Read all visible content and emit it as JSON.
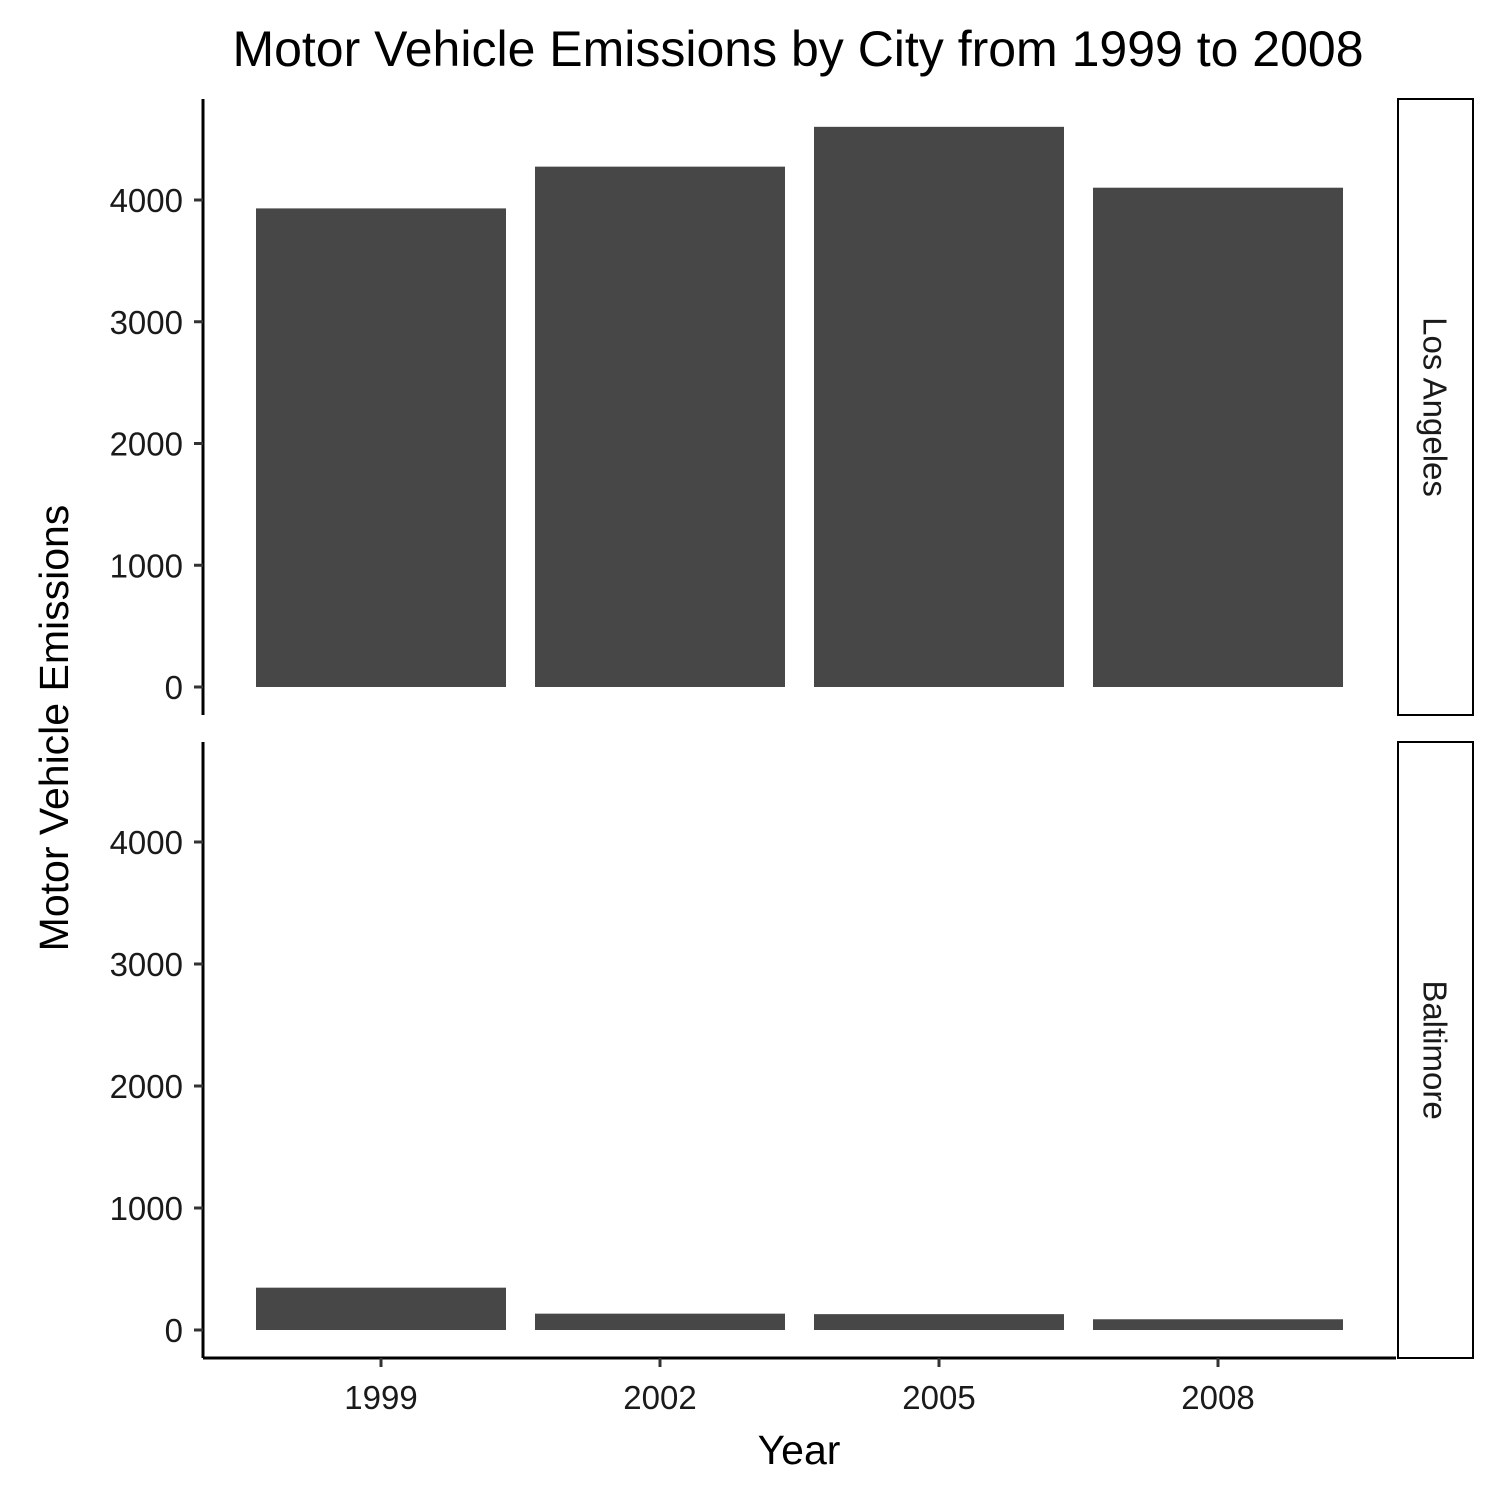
{
  "chart_data": {
    "type": "bar",
    "title": "Motor Vehicle Emissions by City from 1999 to 2008",
    "xlabel": "Year",
    "ylabel": "Motor Vehicle Emissions",
    "categories": [
      "1999",
      "2002",
      "2005",
      "2008"
    ],
    "ylim": [
      0,
      4800
    ],
    "yticks": [
      0,
      1000,
      2000,
      3000,
      4000
    ],
    "bar_color": "#474747",
    "grid": false,
    "facets": [
      {
        "name": "Los Angeles",
        "values": [
          3931,
          4274,
          4601,
          4101
        ]
      },
      {
        "name": "Baltimore",
        "values": [
          347,
          134,
          130,
          88
        ]
      }
    ]
  }
}
